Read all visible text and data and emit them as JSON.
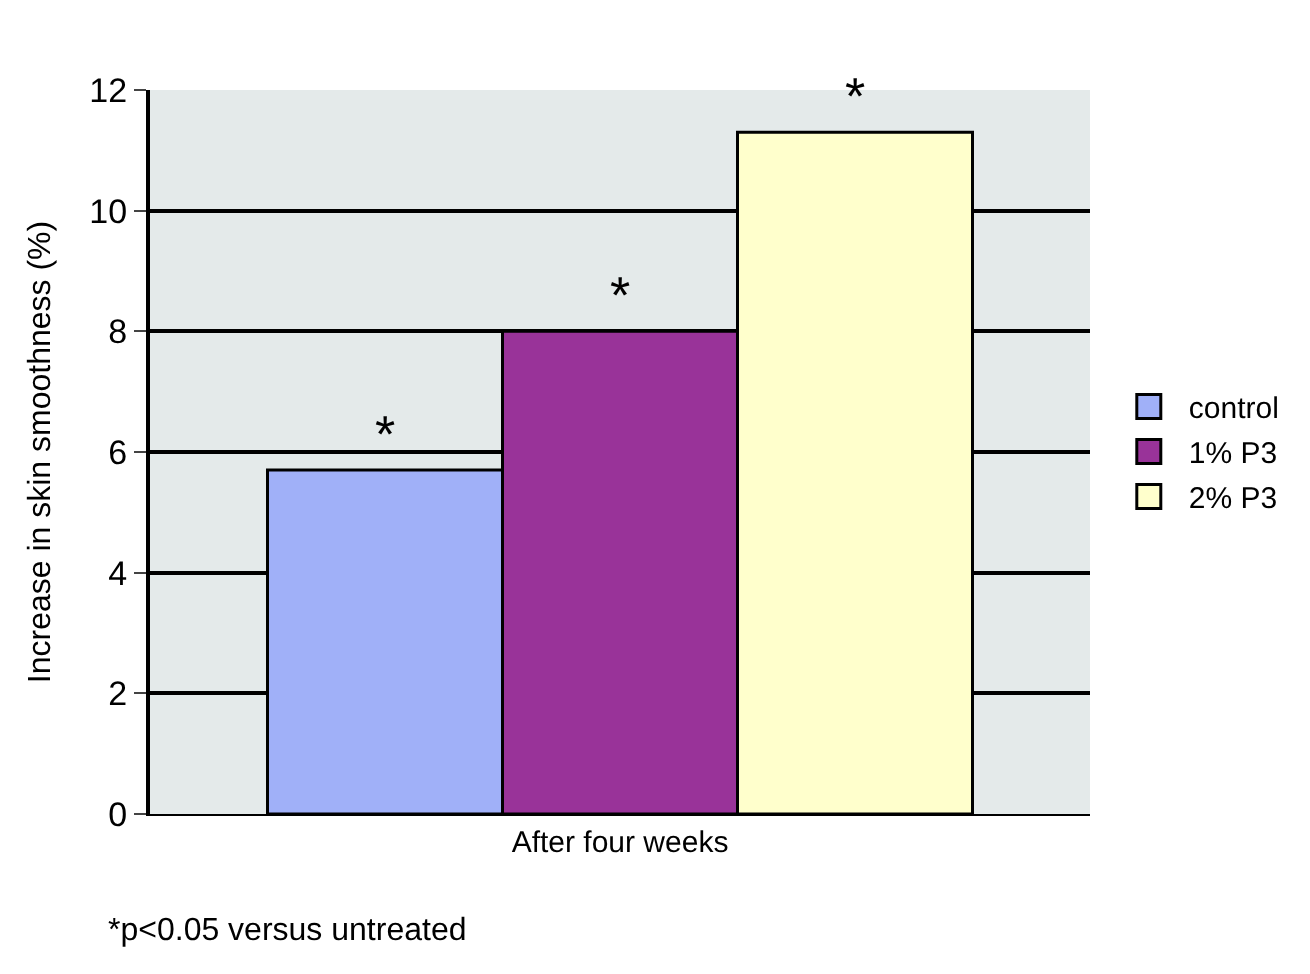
{
  "chart_data": {
    "type": "bar",
    "ylabel": "Increase in skin smoothness (%)",
    "categories": [
      "After four weeks"
    ],
    "series": [
      {
        "name": "control",
        "color": "#a0b0f8",
        "values": [
          5.7
        ],
        "value_labels": [
          "*"
        ]
      },
      {
        "name": "1% P3",
        "color": "#993399",
        "values": [
          8.0
        ],
        "value_labels": [
          "*"
        ]
      },
      {
        "name": "2% P3",
        "color": "#ffffcc",
        "values": [
          11.3
        ],
        "value_labels": [
          "*"
        ]
      }
    ],
    "ylim": [
      0,
      12
    ],
    "yticks": [
      0,
      2,
      4,
      6,
      8,
      10,
      12
    ],
    "grid": "y",
    "legend": "right",
    "annotations": [
      "*p<0.05 versus untreated"
    ]
  }
}
